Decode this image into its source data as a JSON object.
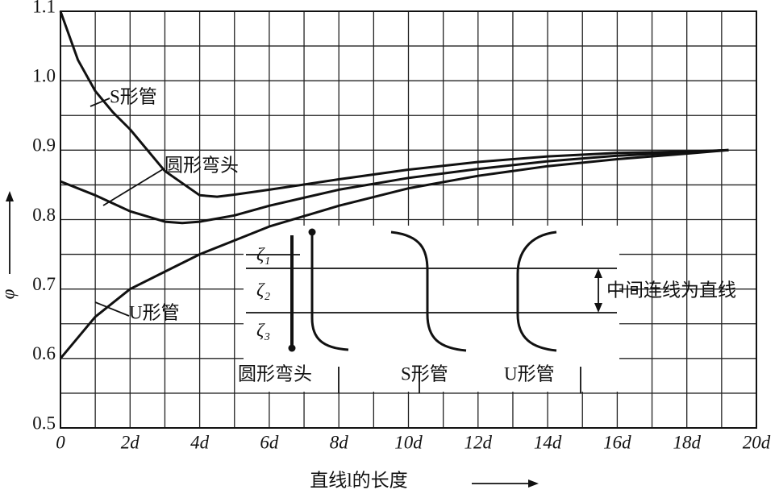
{
  "chart_data": {
    "type": "line",
    "x_label": "直线l的长度",
    "y_label": "φ",
    "xlim": [
      0,
      20
    ],
    "ylim": [
      0.5,
      1.1
    ],
    "xticks": [
      0,
      {
        "value": 2,
        "label": "2d"
      },
      {
        "value": 4,
        "label": "4d"
      },
      {
        "value": 6,
        "label": "6d"
      },
      {
        "value": 8,
        "label": "8d"
      },
      {
        "value": 10,
        "label": "10d"
      },
      {
        "value": 12,
        "label": "12d"
      },
      {
        "value": 14,
        "label": "14d"
      },
      {
        "value": 16,
        "label": "16d"
      },
      {
        "value": 18,
        "label": "18d"
      },
      {
        "value": 20,
        "label": "20d"
      }
    ],
    "yticks": [
      0.5,
      0.6,
      0.7,
      0.8,
      0.9,
      {
        "value": 1,
        "label": "1.0"
      },
      1.1
    ],
    "xminor": [
      1,
      3,
      5,
      7,
      9,
      11,
      13,
      15,
      17,
      19
    ],
    "yminor": [
      0.55,
      0.65,
      0.75,
      0.85,
      0.95,
      1.05
    ],
    "grid": true,
    "series": [
      {
        "name": "S形管",
        "color": "#111111",
        "x": [
          0,
          0.5,
          1,
          1.5,
          2,
          3,
          4,
          4.5,
          5,
          6,
          8,
          10,
          12,
          14,
          16,
          18,
          19.2
        ],
        "values": [
          1.1,
          1.03,
          0.985,
          0.955,
          0.93,
          0.87,
          0.835,
          0.833,
          0.836,
          0.843,
          0.858,
          0.872,
          0.883,
          0.891,
          0.896,
          0.898,
          0.9
        ]
      },
      {
        "name": "圆形弯头",
        "color": "#111111",
        "x": [
          0,
          1,
          2,
          3,
          3.5,
          4,
          5,
          6,
          8,
          10,
          12,
          14,
          16,
          18,
          19.2
        ],
        "values": [
          0.855,
          0.835,
          0.812,
          0.797,
          0.795,
          0.797,
          0.806,
          0.82,
          0.843,
          0.86,
          0.873,
          0.884,
          0.892,
          0.897,
          0.9
        ]
      },
      {
        "name": "U形管",
        "color": "#111111",
        "x": [
          0,
          1,
          2,
          3,
          4,
          5,
          6,
          7,
          8,
          10,
          12,
          14,
          16,
          18,
          19.2
        ],
        "values": [
          0.6,
          0.66,
          0.7,
          0.725,
          0.75,
          0.77,
          0.79,
          0.805,
          0.82,
          0.845,
          0.863,
          0.877,
          0.887,
          0.895,
          0.9
        ]
      }
    ]
  },
  "inset": {
    "zeta_labels": [
      "ζ₁",
      "ζ₂",
      "ζ₃"
    ],
    "shape_labels": [
      "圆形弯头",
      "S形管",
      "U形管"
    ],
    "note": "中间连线为直线"
  }
}
